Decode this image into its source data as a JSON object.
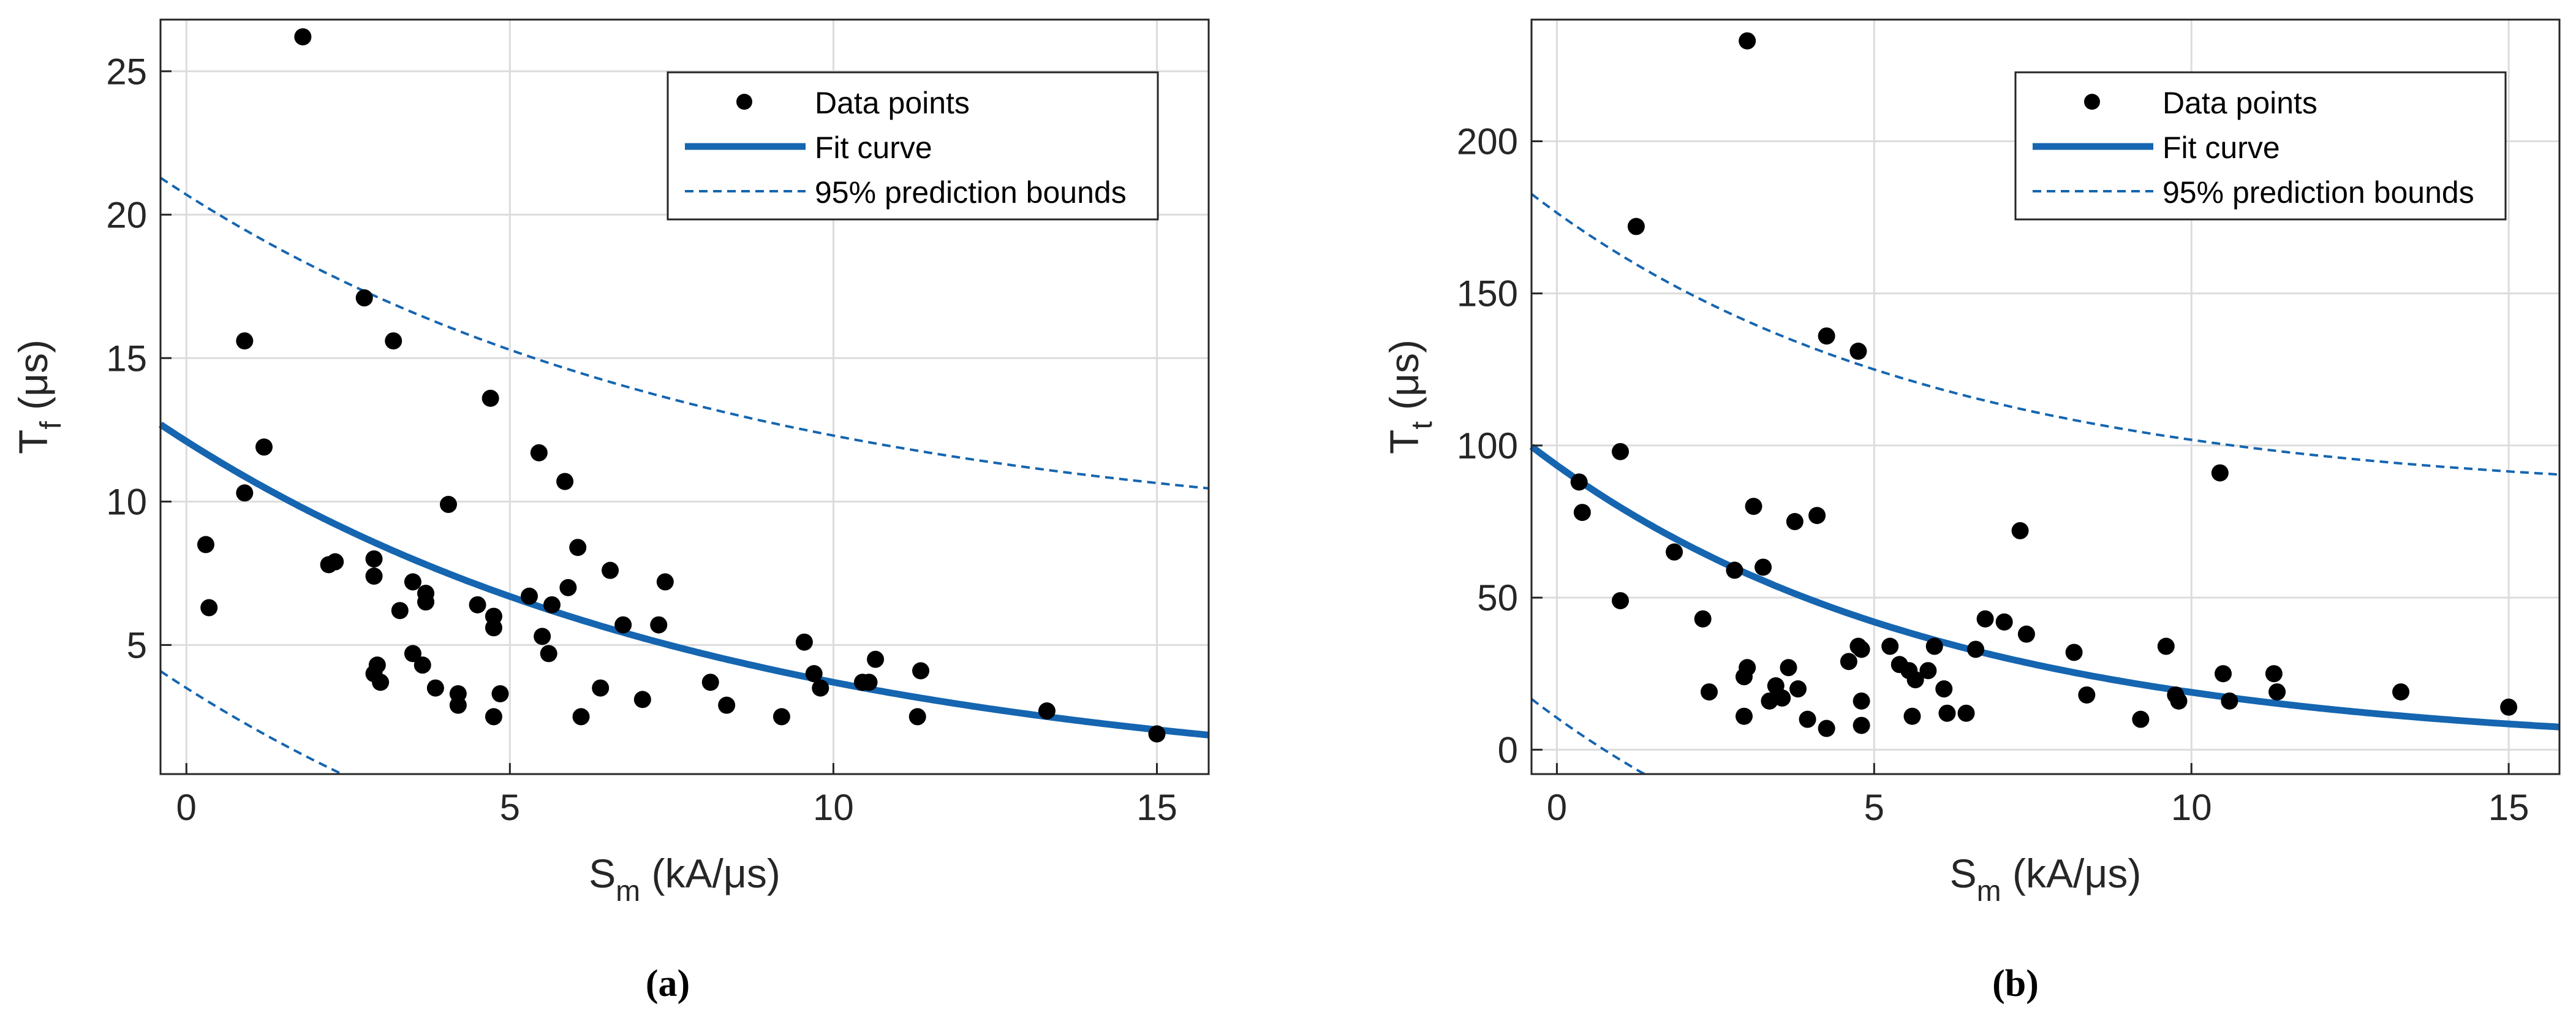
{
  "colors": {
    "fit": "#1565b0",
    "points": "#000000",
    "grid": "#dcdcdc",
    "axis": "#262626"
  },
  "legend": {
    "data_points": "Data points",
    "fit_curve": "Fit curve",
    "prediction_bounds": "95% prediction bounds"
  },
  "chart_data": [
    {
      "type": "scatter",
      "caption": "(a)",
      "xlabel": {
        "main": "S",
        "sub": "m",
        "unit": " (kA/μs)"
      },
      "ylabel": {
        "main": "T",
        "sub": "f",
        "unit": " (μs)"
      },
      "xlim": [
        -0.4,
        15.8
      ],
      "ylim": [
        0.5,
        26.8
      ],
      "xticks": [
        "0",
        "5",
        "10",
        "15"
      ],
      "xtick_values": [
        0,
        5,
        10,
        15
      ],
      "yticks": [
        "5",
        "10",
        "15",
        "20",
        "25"
      ],
      "ytick_values": [
        5,
        10,
        15,
        20,
        25
      ],
      "grid": true,
      "legend_position": "top-right",
      "series": [
        {
          "name": "Data points",
          "points": [
            [
              0.3,
              8.5
            ],
            [
              0.35,
              6.3
            ],
            [
              0.9,
              15.6
            ],
            [
              0.9,
              10.3
            ],
            [
              1.2,
              11.9
            ],
            [
              1.8,
              26.2
            ],
            [
              2.2,
              7.8
            ],
            [
              2.3,
              7.9
            ],
            [
              2.75,
              17.1
            ],
            [
              2.9,
              8.0
            ],
            [
              2.9,
              7.4
            ],
            [
              2.9,
              4.0
            ],
            [
              2.95,
              4.3
            ],
            [
              3.0,
              3.7
            ],
            [
              3.2,
              15.6
            ],
            [
              3.3,
              6.2
            ],
            [
              3.5,
              7.2
            ],
            [
              3.5,
              4.7
            ],
            [
              3.65,
              4.3
            ],
            [
              3.7,
              6.8
            ],
            [
              3.7,
              6.5
            ],
            [
              3.85,
              3.5
            ],
            [
              4.05,
              9.9
            ],
            [
              4.2,
              3.3
            ],
            [
              4.2,
              2.9
            ],
            [
              4.5,
              6.4
            ],
            [
              4.7,
              13.6
            ],
            [
              4.75,
              6.0
            ],
            [
              4.75,
              5.6
            ],
            [
              4.75,
              2.5
            ],
            [
              4.85,
              3.3
            ],
            [
              5.3,
              6.7
            ],
            [
              5.45,
              11.7
            ],
            [
              5.5,
              5.3
            ],
            [
              5.6,
              4.7
            ],
            [
              5.65,
              6.4
            ],
            [
              5.85,
              10.7
            ],
            [
              5.9,
              7.0
            ],
            [
              6.05,
              8.4
            ],
            [
              6.1,
              2.5
            ],
            [
              6.4,
              3.5
            ],
            [
              6.55,
              7.6
            ],
            [
              6.75,
              5.7
            ],
            [
              7.05,
              3.1
            ],
            [
              7.3,
              5.7
            ],
            [
              7.4,
              7.2
            ],
            [
              8.1,
              3.7
            ],
            [
              8.35,
              2.9
            ],
            [
              9.2,
              2.5
            ],
            [
              9.55,
              5.1
            ],
            [
              9.7,
              4.0
            ],
            [
              9.8,
              3.5
            ],
            [
              10.45,
              3.7
            ],
            [
              10.55,
              3.7
            ],
            [
              10.65,
              4.5
            ],
            [
              11.3,
              2.5
            ],
            [
              11.35,
              4.1
            ],
            [
              13.3,
              2.7
            ],
            [
              15.0,
              1.9
            ]
          ]
        },
        {
          "name": "Fit curve",
          "model": "a*exp(b*x)",
          "a": 12.1,
          "b": -0.1185
        },
        {
          "name": "95% prediction bounds (upper)",
          "model": "y = fit + 8.6"
        },
        {
          "name": "95% prediction bounds (lower)",
          "model": "y = fit - 8.6"
        }
      ]
    },
    {
      "type": "scatter",
      "caption": "(b)",
      "xlabel": {
        "main": "S",
        "sub": "m",
        "unit": " (kA/μs)"
      },
      "ylabel": {
        "main": "T",
        "sub": "t",
        "unit": " (μs)"
      },
      "xlim": [
        -0.4,
        15.8
      ],
      "ylim": [
        -8,
        240
      ],
      "xticks": [
        "0",
        "5",
        "10",
        "15"
      ],
      "xtick_values": [
        0,
        5,
        10,
        15
      ],
      "yticks": [
        "0",
        "50",
        "100",
        "150",
        "200"
      ],
      "ytick_values": [
        0,
        50,
        100,
        150,
        200
      ],
      "grid": true,
      "legend_position": "top-right",
      "series": [
        {
          "name": "Data points",
          "points": [
            [
              0.35,
              88
            ],
            [
              0.4,
              78
            ],
            [
              1.0,
              98
            ],
            [
              1.0,
              49
            ],
            [
              1.25,
              172
            ],
            [
              1.85,
              65
            ],
            [
              2.3,
              43
            ],
            [
              2.4,
              19
            ],
            [
              2.8,
              59
            ],
            [
              2.95,
              24
            ],
            [
              2.95,
              11
            ],
            [
              3.0,
              27
            ],
            [
              3.0,
              233
            ],
            [
              3.1,
              80
            ],
            [
              3.25,
              60
            ],
            [
              3.35,
              16
            ],
            [
              3.45,
              21
            ],
            [
              3.55,
              17
            ],
            [
              3.65,
              27
            ],
            [
              3.75,
              75
            ],
            [
              3.8,
              20
            ],
            [
              3.95,
              10
            ],
            [
              4.1,
              77
            ],
            [
              4.25,
              136
            ],
            [
              4.25,
              7
            ],
            [
              4.6,
              29
            ],
            [
              4.75,
              131
            ],
            [
              4.75,
              34
            ],
            [
              4.8,
              33
            ],
            [
              4.8,
              16
            ],
            [
              4.8,
              8
            ],
            [
              5.25,
              34
            ],
            [
              5.4,
              28
            ],
            [
              5.55,
              26
            ],
            [
              5.6,
              11
            ],
            [
              5.65,
              23
            ],
            [
              5.85,
              26
            ],
            [
              5.95,
              34
            ],
            [
              6.1,
              20
            ],
            [
              6.15,
              12
            ],
            [
              6.45,
              12
            ],
            [
              6.6,
              33
            ],
            [
              6.75,
              43
            ],
            [
              7.05,
              42
            ],
            [
              7.3,
              72
            ],
            [
              7.4,
              38
            ],
            [
              8.15,
              32
            ],
            [
              8.35,
              18
            ],
            [
              9.2,
              10
            ],
            [
              9.6,
              34
            ],
            [
              9.75,
              18
            ],
            [
              9.8,
              16
            ],
            [
              10.45,
              91
            ],
            [
              10.5,
              25
            ],
            [
              10.6,
              16
            ],
            [
              11.3,
              25
            ],
            [
              11.35,
              19
            ],
            [
              13.3,
              19
            ],
            [
              15.0,
              14
            ]
          ]
        },
        {
          "name": "Fit curve",
          "model": "a*exp(b*x)",
          "a": 93.5,
          "b": -0.16
        },
        {
          "name": "95% prediction bounds (upper)",
          "model": "y = fit + 83"
        },
        {
          "name": "95% prediction bounds (lower)",
          "model": "y = fit - 83"
        }
      ]
    }
  ]
}
